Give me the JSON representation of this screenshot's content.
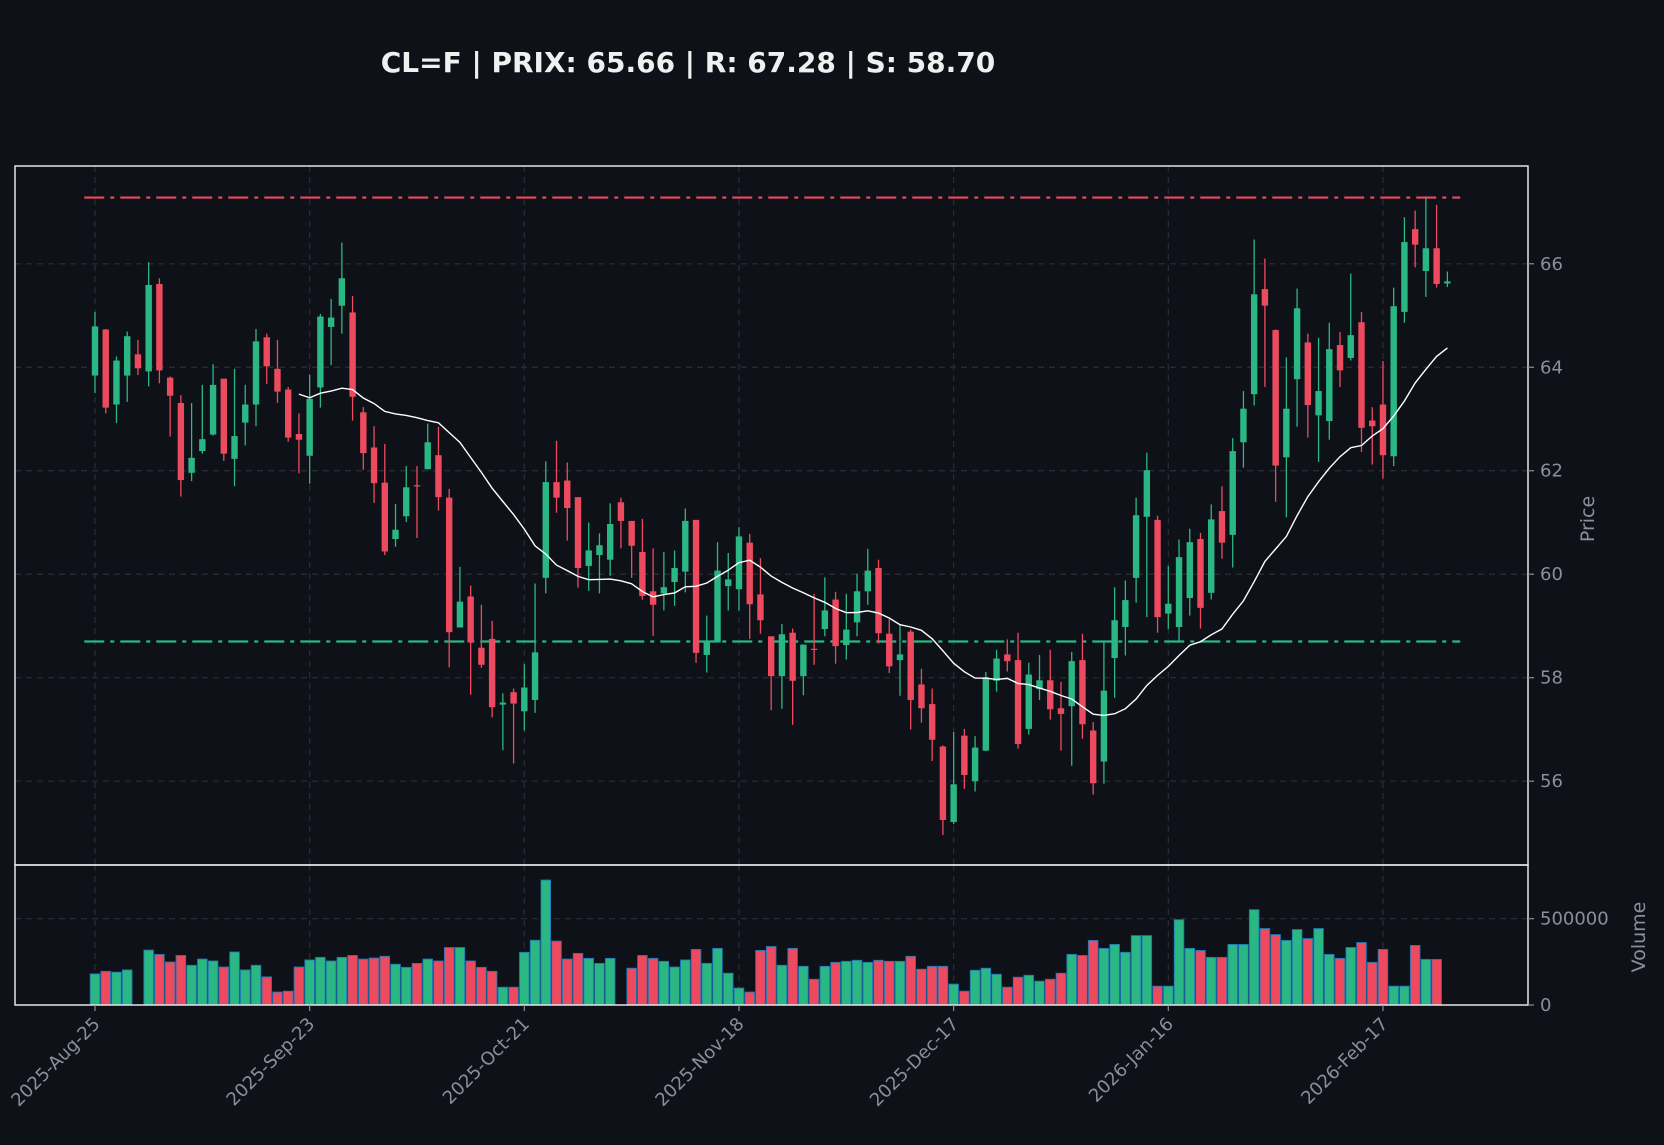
{
  "title": "CL=F | PRIX: 65.66 | R: 67.28 | S: 58.70",
  "colors": {
    "background": "#0e1118",
    "up": "#2bb784",
    "down": "#ee4a5f",
    "volume_edge": "#1f77b4",
    "moving_average": "#ffffff",
    "resistance": "#ee4a5f",
    "support": "#2bb784",
    "grid": "#2a2e36",
    "axis": "#e6e6e6",
    "tick_text": "#8a8f98"
  },
  "chart_data": [
    {
      "type": "candlestick",
      "ylabel": "Price",
      "ylim": [
        54.38,
        67.89
      ],
      "yticks": [
        56,
        58,
        60,
        62,
        64,
        66
      ],
      "grid": true,
      "xticks": [
        {
          "index": 0,
          "label": "2025-Aug-25"
        },
        {
          "index": 20,
          "label": "2025-Sep-23"
        },
        {
          "index": 40,
          "label": "2025-Oct-21"
        },
        {
          "index": 60,
          "label": "2025-Nov-18"
        },
        {
          "index": 80,
          "label": "2025-Dec-17"
        },
        {
          "index": 100,
          "label": "2026-Jan-16"
        },
        {
          "index": 120,
          "label": "2026-Feb-17"
        }
      ],
      "resistance": 67.28,
      "support": 58.7,
      "moving_average_period": 20,
      "ohlc_fields": [
        "open",
        "high",
        "low",
        "close"
      ],
      "ohlc": [
        [
          63.84,
          65.07,
          63.5,
          64.79
        ],
        [
          64.73,
          64.74,
          63.11,
          63.22
        ],
        [
          63.28,
          64.21,
          62.92,
          64.13
        ],
        [
          63.84,
          64.69,
          63.33,
          64.6
        ],
        [
          64.25,
          64.53,
          63.85,
          63.98
        ],
        [
          63.92,
          66.03,
          63.63,
          65.59
        ],
        [
          65.61,
          65.72,
          63.69,
          63.94
        ],
        [
          63.8,
          63.82,
          62.66,
          63.45
        ],
        [
          63.31,
          63.46,
          61.5,
          61.82
        ],
        [
          61.96,
          63.31,
          61.8,
          62.25
        ],
        [
          62.38,
          63.66,
          62.33,
          62.61
        ],
        [
          62.7,
          64.06,
          62.68,
          63.66
        ],
        [
          63.78,
          63.78,
          62.19,
          62.33
        ],
        [
          62.23,
          63.97,
          61.7,
          62.67
        ],
        [
          62.93,
          63.66,
          62.49,
          63.28
        ],
        [
          63.28,
          64.74,
          62.86,
          64.5
        ],
        [
          64.58,
          64.65,
          63.68,
          64.02
        ],
        [
          63.97,
          64.53,
          63.31,
          63.53
        ],
        [
          63.57,
          63.62,
          62.56,
          62.64
        ],
        [
          62.71,
          63.11,
          61.95,
          62.6
        ],
        [
          62.29,
          63.86,
          61.75,
          63.39
        ],
        [
          63.61,
          65.03,
          63.22,
          64.98
        ],
        [
          64.78,
          65.32,
          64.04,
          64.96
        ],
        [
          65.19,
          66.41,
          64.65,
          65.72
        ],
        [
          65.06,
          65.38,
          62.97,
          63.43
        ],
        [
          63.13,
          63.23,
          62.02,
          62.34
        ],
        [
          62.45,
          62.86,
          61.38,
          61.76
        ],
        [
          61.77,
          62.52,
          60.37,
          60.44
        ],
        [
          60.68,
          61.36,
          60.53,
          60.86
        ],
        [
          61.12,
          62.09,
          61.01,
          61.68
        ],
        [
          61.72,
          62.09,
          60.7,
          61.7
        ],
        [
          62.03,
          62.91,
          62.03,
          62.55
        ],
        [
          62.3,
          62.85,
          61.23,
          61.49
        ],
        [
          61.48,
          61.65,
          58.2,
          58.88
        ],
        [
          58.97,
          60.14,
          58.97,
          59.47
        ],
        [
          59.57,
          59.78,
          57.67,
          58.68
        ],
        [
          58.58,
          59.41,
          58.19,
          58.25
        ],
        [
          58.75,
          59.1,
          57.23,
          57.43
        ],
        [
          57.48,
          57.7,
          56.6,
          57.52
        ],
        [
          57.72,
          57.79,
          56.34,
          57.5
        ],
        [
          57.35,
          58.26,
          56.98,
          57.81
        ],
        [
          57.57,
          59.82,
          57.32,
          58.49
        ],
        [
          59.93,
          62.18,
          59.63,
          61.78
        ],
        [
          61.78,
          62.58,
          61.19,
          61.48
        ],
        [
          61.81,
          62.16,
          60.65,
          61.28
        ],
        [
          61.49,
          61.49,
          59.74,
          60.12
        ],
        [
          60.16,
          61.0,
          59.68,
          60.46
        ],
        [
          60.37,
          60.79,
          59.63,
          60.56
        ],
        [
          60.28,
          61.37,
          59.97,
          60.97
        ],
        [
          61.39,
          61.48,
          60.5,
          61.03
        ],
        [
          61.03,
          61.03,
          59.93,
          60.55
        ],
        [
          60.43,
          61.07,
          59.51,
          59.58
        ],
        [
          59.67,
          60.5,
          58.81,
          59.41
        ],
        [
          59.63,
          60.43,
          59.3,
          59.75
        ],
        [
          59.85,
          60.46,
          59.39,
          60.12
        ],
        [
          60.05,
          61.27,
          59.65,
          61.03
        ],
        [
          61.05,
          61.05,
          58.29,
          58.48
        ],
        [
          58.44,
          59.2,
          58.1,
          58.69
        ],
        [
          58.68,
          60.62,
          58.68,
          60.07
        ],
        [
          59.77,
          60.41,
          59.3,
          59.9
        ],
        [
          59.71,
          60.91,
          59.3,
          60.73
        ],
        [
          60.61,
          60.78,
          58.75,
          59.42
        ],
        [
          59.61,
          60.31,
          58.85,
          59.11
        ],
        [
          58.8,
          58.8,
          57.37,
          58.03
        ],
        [
          58.03,
          59.04,
          57.4,
          58.84
        ],
        [
          58.87,
          58.95,
          57.09,
          57.94
        ],
        [
          58.03,
          58.64,
          57.66,
          58.64
        ],
        [
          58.56,
          59.62,
          58.25,
          58.54
        ],
        [
          58.94,
          59.94,
          58.8,
          59.3
        ],
        [
          59.51,
          59.66,
          58.27,
          58.61
        ],
        [
          58.63,
          59.62,
          58.35,
          58.93
        ],
        [
          59.07,
          60.01,
          58.8,
          59.67
        ],
        [
          59.67,
          60.49,
          59.41,
          60.07
        ],
        [
          60.12,
          60.28,
          58.66,
          58.86
        ],
        [
          58.85,
          59.13,
          58.09,
          58.22
        ],
        [
          58.34,
          59.03,
          57.65,
          58.45
        ],
        [
          58.89,
          58.93,
          57.0,
          57.57
        ],
        [
          57.87,
          58.17,
          57.13,
          57.41
        ],
        [
          57.49,
          57.79,
          56.39,
          56.8
        ],
        [
          56.67,
          56.69,
          54.96,
          55.25
        ],
        [
          55.21,
          56.95,
          55.17,
          55.94
        ],
        [
          56.88,
          57.01,
          55.85,
          56.12
        ],
        [
          56.0,
          56.87,
          55.8,
          56.65
        ],
        [
          56.59,
          58.11,
          56.58,
          58.01
        ],
        [
          57.94,
          58.54,
          57.73,
          58.37
        ],
        [
          58.45,
          58.74,
          58.12,
          58.32
        ],
        [
          58.34,
          58.87,
          56.63,
          56.72
        ],
        [
          57.01,
          58.29,
          56.9,
          58.06
        ],
        [
          57.78,
          58.44,
          57.57,
          57.95
        ],
        [
          57.95,
          58.54,
          57.19,
          57.39
        ],
        [
          57.41,
          57.92,
          56.59,
          57.3
        ],
        [
          57.45,
          58.5,
          56.3,
          58.32
        ],
        [
          58.34,
          58.85,
          56.82,
          57.1
        ],
        [
          56.98,
          57.14,
          55.74,
          55.96
        ],
        [
          56.38,
          58.72,
          55.95,
          57.75
        ],
        [
          58.38,
          59.75,
          57.61,
          59.11
        ],
        [
          58.98,
          59.88,
          58.43,
          59.5
        ],
        [
          59.93,
          61.48,
          59.45,
          61.14
        ],
        [
          61.11,
          62.35,
          59.17,
          62.01
        ],
        [
          61.05,
          61.13,
          58.87,
          59.17
        ],
        [
          59.24,
          60.16,
          58.94,
          59.43
        ],
        [
          58.98,
          60.67,
          58.69,
          60.33
        ],
        [
          59.54,
          60.88,
          59.2,
          60.62
        ],
        [
          60.68,
          60.8,
          58.95,
          59.35
        ],
        [
          59.64,
          61.35,
          59.51,
          61.06
        ],
        [
          61.22,
          61.7,
          60.3,
          60.61
        ],
        [
          60.76,
          62.63,
          60.13,
          62.38
        ],
        [
          62.55,
          63.54,
          62.06,
          63.2
        ],
        [
          63.48,
          66.47,
          63.26,
          65.41
        ],
        [
          65.51,
          66.1,
          63.62,
          65.19
        ],
        [
          64.72,
          64.73,
          61.4,
          62.1
        ],
        [
          62.26,
          64.19,
          61.1,
          63.2
        ],
        [
          63.77,
          65.52,
          62.85,
          65.14
        ],
        [
          64.48,
          64.65,
          62.64,
          63.27
        ],
        [
          63.07,
          64.57,
          62.17,
          63.54
        ],
        [
          62.96,
          64.86,
          62.6,
          64.35
        ],
        [
          64.43,
          64.68,
          63.62,
          63.94
        ],
        [
          64.18,
          65.81,
          64.13,
          64.62
        ],
        [
          64.87,
          65.07,
          62.36,
          62.83
        ],
        [
          62.97,
          63.23,
          62.12,
          62.86
        ],
        [
          63.28,
          64.12,
          61.85,
          62.3
        ],
        [
          62.28,
          65.54,
          62.09,
          65.18
        ],
        [
          65.07,
          66.9,
          64.86,
          66.42
        ],
        [
          66.67,
          67.03,
          65.93,
          66.37
        ],
        [
          65.86,
          67.28,
          65.36,
          66.3
        ],
        [
          66.3,
          67.14,
          65.54,
          65.61
        ],
        [
          65.62,
          65.85,
          65.55,
          65.66
        ]
      ]
    },
    {
      "type": "bar",
      "ylabel": "Volume",
      "ylim": [
        0,
        811000
      ],
      "yticks": [
        0,
        500000
      ],
      "ytick_labels": [
        "0",
        "500000"
      ],
      "values": [
        180000,
        195000,
        190000,
        203000,
        0,
        318000,
        293000,
        249000,
        287000,
        230000,
        266000,
        255000,
        220000,
        307000,
        203000,
        230000,
        163000,
        75000,
        80000,
        220000,
        261000,
        276000,
        255000,
        276000,
        287000,
        266000,
        272000,
        282000,
        236000,
        218000,
        241000,
        266000,
        255000,
        333000,
        333000,
        255000,
        218000,
        195000,
        103000,
        103000,
        305000,
        375000,
        724000,
        370000,
        266000,
        299000,
        270000,
        241000,
        270000,
        0,
        213000,
        287000,
        270000,
        253000,
        220000,
        261000,
        322000,
        241000,
        328000,
        184000,
        98000,
        75000,
        316000,
        339000,
        230000,
        328000,
        224000,
        149000,
        224000,
        247000,
        253000,
        259000,
        247000,
        259000,
        253000,
        253000,
        282000,
        207000,
        224000,
        224000,
        121000,
        80000,
        201000,
        213000,
        178000,
        103000,
        161000,
        172000,
        138000,
        149000,
        184000,
        293000,
        287000,
        374000,
        328000,
        351000,
        305000,
        402000,
        402000,
        109000,
        109000,
        494000,
        328000,
        316000,
        276000,
        276000,
        351000,
        351000,
        552000,
        443000,
        408000,
        374000,
        437000,
        385000,
        443000,
        293000,
        270000,
        333000,
        362000,
        247000,
        322000,
        109000,
        109000,
        345000,
        264000,
        264000,
        0
      ]
    }
  ]
}
